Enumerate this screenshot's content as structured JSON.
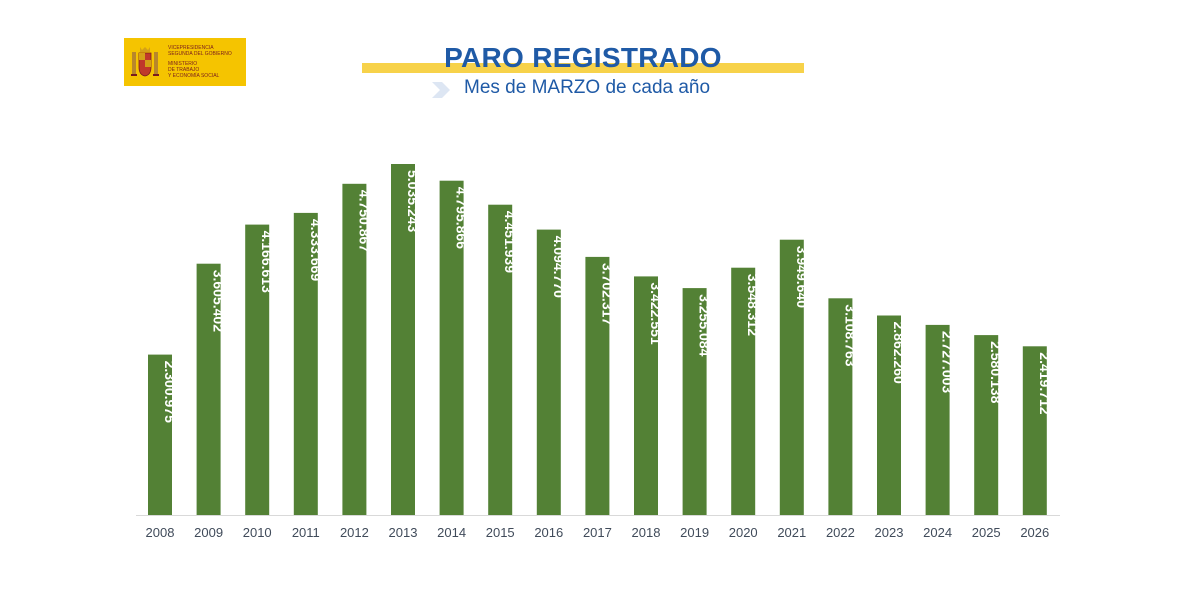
{
  "logo": {
    "line1": "Vicepresidencia",
    "line2": "Segunda del Gobierno",
    "line3": "Ministerio",
    "line4": "de Trabajo",
    "line5": "y Economía Social",
    "colors": {
      "background": "#f5c400",
      "text": "#7a1d1d"
    }
  },
  "header": {
    "title": "PARO REGISTRADO",
    "subtitle": "Mes de MARZO de cada año"
  },
  "chart_data": {
    "type": "bar",
    "title": "PARO REGISTRADO",
    "subtitle": "Mes de MARZO de cada año",
    "xlabel": "",
    "ylabel": "",
    "ylim": [
      0,
      5035243
    ],
    "grid": false,
    "legend": "none",
    "bar_color": "#538135",
    "categories": [
      "2008",
      "2009",
      "2010",
      "2011",
      "2012",
      "2013",
      "2014",
      "2015",
      "2016",
      "2017",
      "2018",
      "2019",
      "2020",
      "2021",
      "2022",
      "2023",
      "2024",
      "2025",
      "2026"
    ],
    "values": [
      2300975,
      3605402,
      4166613,
      4333669,
      4750867,
      5035243,
      4795866,
      4451939,
      4094770,
      3702317,
      3422551,
      3255084,
      3548312,
      3949640,
      3108763,
      2862260,
      2727003,
      2580138,
      2419712
    ],
    "data_labels": [
      "2.300.975",
      "3.605.402",
      "4.166.613",
      "4.333.669",
      "4.750.867",
      "5.035.243",
      "4.795.866",
      "4.451.939",
      "4.094.770",
      "3.702.317",
      "3.422.551",
      "3.255.084",
      "3.548.312",
      "3.949.640",
      "3.108.763",
      "2.862.260",
      "2.727.003",
      "2.580.138",
      "2.419.712"
    ]
  }
}
